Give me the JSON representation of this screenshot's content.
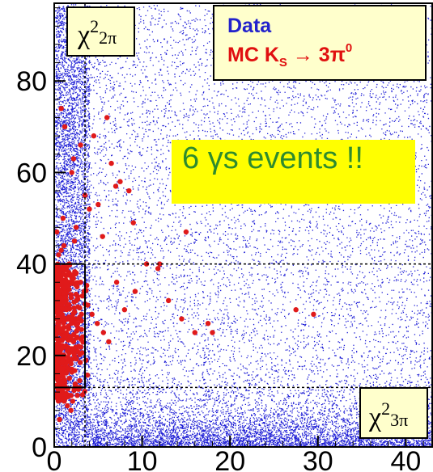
{
  "chart_data": {
    "type": "scatter",
    "title": "",
    "xlabel": "χ²3π",
    "ylabel": "χ²2π",
    "xlabel_parts": {
      "main": "χ",
      "sup": "2",
      "sub": "3π"
    },
    "ylabel_parts": {
      "main": "χ",
      "sup": "2",
      "sub": "2π"
    },
    "xlim": [
      0,
      43
    ],
    "ylim": [
      0,
      97
    ],
    "x_ticks": [
      0,
      10,
      20,
      30,
      40
    ],
    "y_ticks": [
      0,
      20,
      40,
      60,
      80
    ],
    "x_tick_labels": [
      "0",
      "10",
      "20",
      "30",
      "40"
    ],
    "y_tick_labels": [
      "0",
      "20",
      "40",
      "60",
      "80"
    ],
    "grid": false,
    "legend_position": "top-right",
    "legend": {
      "data_label": "Data",
      "mc_label_prefix": "MC K",
      "mc_label_sub": "S",
      "mc_label_arrow": " → 3π",
      "mc_label_sup": "0"
    },
    "annotation": "6 γs events !!",
    "cut_lines": {
      "x": 3.5,
      "y_loose": 40,
      "y_tight": 13
    },
    "colors": {
      "data": "#1f1fd6",
      "mc": "#e01a1a",
      "legend_data": "#2222cc",
      "legend_mc": "#e01010",
      "legend_bg": "#ffffcc",
      "annotation_bg": "#ffff00",
      "annotation_text": "#2e8b2e"
    },
    "series": [
      {
        "name": "Data",
        "marker": "dot",
        "description_points": "dense band y<15, sparse uniform elsewhere"
      },
      {
        "name": "MC KS → 3π0",
        "marker": "circle",
        "x": [
          0.3,
          0.5,
          0.8,
          1.1,
          1.4,
          1.7,
          2.0,
          2.3,
          2.6,
          0.4,
          0.9,
          1.3,
          1.8,
          2.2,
          2.7,
          3.1,
          0.6,
          1.0,
          1.5,
          1.9,
          2.4,
          2.9,
          0.2,
          0.7,
          1.2,
          1.6,
          2.1,
          2.5,
          3.0,
          3.4,
          0.5,
          1.1,
          1.7,
          2.3,
          0.3,
          0.8,
          1.4,
          2.0,
          2.6,
          3.2,
          3.8,
          4.3,
          4.9,
          5.6,
          6.2,
          7.1,
          8.0,
          9.2,
          10.5,
          11.8,
          13.0,
          14.5,
          16.0,
          18.0,
          1.0,
          2.5,
          4.0,
          5.5,
          7.5,
          9.0,
          2.0,
          3.5,
          6.5,
          8.5,
          12.0,
          15.0,
          17.5,
          27.5,
          29.5,
          0.8,
          1.2,
          3.0,
          4.5,
          6.0,
          2.2,
          5.0,
          7.0,
          1.5,
          0.6,
          1.9
        ],
        "y": [
          15,
          18,
          22,
          25,
          28,
          31,
          17,
          20,
          24,
          27,
          30,
          33,
          19,
          23,
          26,
          29,
          32,
          35,
          21,
          24,
          28,
          13,
          16,
          12,
          14,
          11,
          10,
          38,
          36,
          34,
          42,
          44,
          40,
          45,
          47,
          43,
          39,
          37,
          35,
          33,
          31,
          29,
          27,
          25,
          23,
          36,
          30,
          34,
          40,
          39,
          32,
          28,
          25,
          25,
          50,
          48,
          52,
          46,
          58,
          49,
          60,
          55,
          62,
          56,
          40,
          47,
          27,
          30,
          29,
          74,
          70,
          66,
          68,
          72,
          63,
          53,
          57,
          9,
          6,
          8
        ]
      }
    ]
  }
}
